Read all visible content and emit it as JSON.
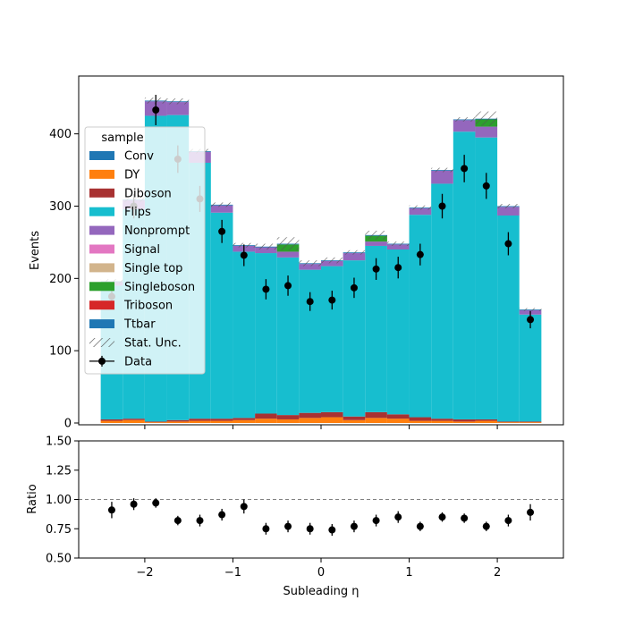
{
  "chart_data": [
    {
      "type": "bar",
      "subtype": "stacked-histogram",
      "title": "",
      "xlabel": "",
      "ylabel": "Events",
      "xlim": [
        -2.75,
        2.75
      ],
      "ylim": [
        0,
        480
      ],
      "yticks": [
        0,
        100,
        200,
        300,
        400
      ],
      "legend": {
        "title": "sample",
        "placement": "upper-left",
        "entries": [
          {
            "label": "Conv",
            "color": "#1f77b4"
          },
          {
            "label": "DY",
            "color": "#ff7f0e"
          },
          {
            "label": "Diboson",
            "color": "#a83232"
          },
          {
            "label": "Flips",
            "color": "#17becf"
          },
          {
            "label": "Nonprompt",
            "color": "#9467bd"
          },
          {
            "label": "Signal",
            "color": "#e377c2"
          },
          {
            "label": "Single top",
            "color": "#d2b48c"
          },
          {
            "label": "Singleboson",
            "color": "#2ca02c"
          },
          {
            "label": "Triboson",
            "color": "#d62728"
          },
          {
            "label": "Ttbar",
            "color": "#1f77b4"
          },
          {
            "label": "Stat. Unc."
          },
          {
            "label": "Data"
          }
        ]
      },
      "bin_edges": [
        -2.5,
        -2.25,
        -2.0,
        -1.75,
        -1.5,
        -1.25,
        -1.0,
        -0.75,
        -0.5,
        -0.25,
        0.0,
        0.25,
        0.5,
        0.75,
        1.0,
        1.25,
        1.5,
        1.75,
        2.0,
        2.25,
        2.5
      ],
      "series": [
        {
          "name": "DY",
          "color": "#ff7f0e",
          "values": [
            3,
            4,
            1,
            2,
            3,
            3,
            4,
            6,
            5,
            7,
            8,
            4,
            7,
            6,
            3,
            3,
            2,
            3,
            1,
            1
          ]
        },
        {
          "name": "Diboson",
          "color": "#a83232",
          "values": [
            2,
            2,
            1,
            2,
            3,
            3,
            3,
            7,
            6,
            7,
            7,
            5,
            8,
            6,
            5,
            3,
            3,
            2,
            1,
            1
          ]
        },
        {
          "name": "Flips",
          "color": "#17becf",
          "values": [
            185,
            290,
            423,
            422,
            354,
            285,
            230,
            222,
            218,
            198,
            202,
            216,
            230,
            228,
            280,
            325,
            398,
            390,
            285,
            148
          ]
        },
        {
          "name": "Nonprompt",
          "color": "#9467bd",
          "values": [
            5,
            12,
            20,
            18,
            15,
            10,
            8,
            8,
            8,
            8,
            7,
            10,
            6,
            7,
            9,
            18,
            16,
            15,
            12,
            6
          ]
        },
        {
          "name": "Singleboson",
          "color": "#2ca02c",
          "values": [
            0,
            0,
            0,
            0,
            0,
            0,
            0,
            0,
            10,
            0,
            0,
            0,
            8,
            0,
            0,
            0,
            0,
            10,
            0,
            0
          ]
        },
        {
          "name": "Ttbar",
          "color": "#1f77b4",
          "values": [
            1,
            1,
            1,
            1,
            1,
            1,
            1,
            1,
            1,
            1,
            1,
            1,
            1,
            1,
            1,
            1,
            1,
            1,
            1,
            1
          ]
        }
      ],
      "stat_unc": [
        3,
        3,
        4,
        4,
        3,
        3,
        3,
        4,
        9,
        4,
        4,
        3,
        6,
        3,
        3,
        3,
        3,
        10,
        3,
        2
      ],
      "data": {
        "name": "Data",
        "x": [
          -2.375,
          -2.125,
          -1.875,
          -1.625,
          -1.375,
          -1.125,
          -0.875,
          -0.625,
          -0.375,
          -0.125,
          0.125,
          0.375,
          0.625,
          0.875,
          1.125,
          1.375,
          1.625,
          1.875,
          2.125,
          2.375
        ],
        "values": [
          175,
          300,
          433,
          365,
          310,
          265,
          232,
          185,
          190,
          168,
          170,
          187,
          213,
          215,
          233,
          300,
          352,
          328,
          248,
          143
        ],
        "errors": [
          13,
          17,
          21,
          19,
          18,
          16,
          15,
          14,
          14,
          13,
          13,
          14,
          15,
          15,
          15,
          17,
          19,
          18,
          16,
          12
        ]
      }
    },
    {
      "type": "scatter",
      "title": "",
      "xlabel": "Subleading η",
      "ylabel": "Ratio",
      "xlim": [
        -2.75,
        2.75
      ],
      "ylim": [
        0.5,
        1.5
      ],
      "xticks": [
        -2,
        -1,
        0,
        1,
        2
      ],
      "xtick_labels": [
        "−2",
        "−1",
        "0",
        "1",
        "2"
      ],
      "yticks": [
        0.5,
        0.75,
        1.0,
        1.25,
        1.5
      ],
      "ytick_labels": [
        "0.50",
        "0.75",
        "1.00",
        "1.25",
        "1.50"
      ],
      "reference_line": 1.0,
      "x": [
        -2.375,
        -2.125,
        -1.875,
        -1.625,
        -1.375,
        -1.125,
        -0.875,
        -0.625,
        -0.375,
        -0.125,
        0.125,
        0.375,
        0.625,
        0.875,
        1.125,
        1.375,
        1.625,
        1.875,
        2.125,
        2.375
      ],
      "values": [
        0.91,
        0.96,
        0.97,
        0.82,
        0.82,
        0.87,
        0.94,
        0.75,
        0.77,
        0.75,
        0.74,
        0.77,
        0.82,
        0.85,
        0.77,
        0.85,
        0.84,
        0.77,
        0.82,
        0.89
      ],
      "errors": [
        0.07,
        0.05,
        0.04,
        0.04,
        0.05,
        0.05,
        0.06,
        0.05,
        0.05,
        0.05,
        0.05,
        0.05,
        0.05,
        0.05,
        0.04,
        0.04,
        0.04,
        0.04,
        0.05,
        0.07
      ]
    }
  ]
}
